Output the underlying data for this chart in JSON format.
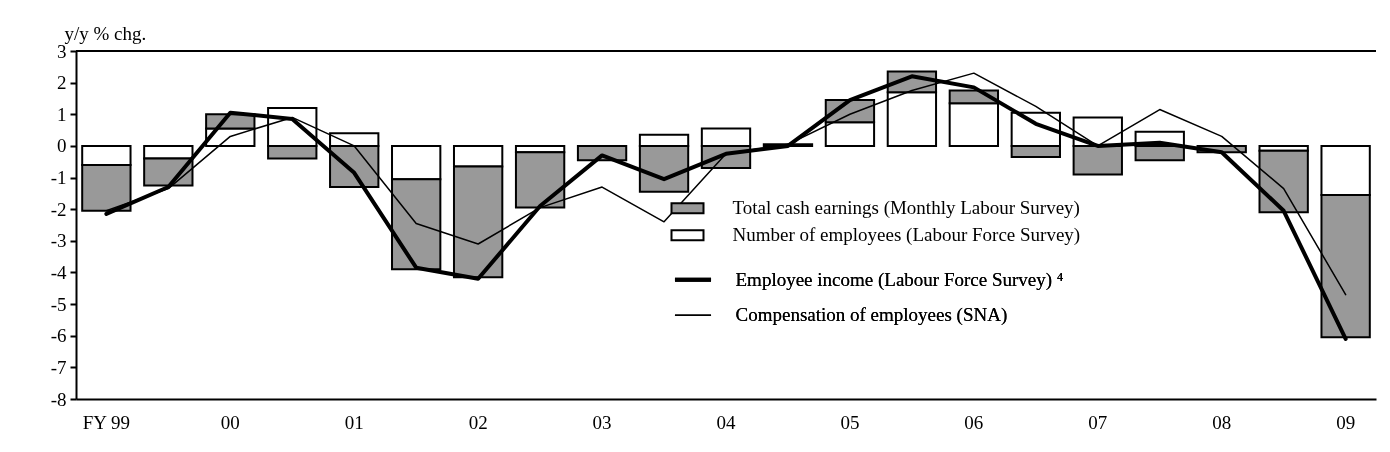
{
  "chart_data": {
    "type": "bar",
    "ylabel": "y/y % chg.",
    "stacked": true,
    "legend": "bottom right",
    "categories": [
      "FY 99",
      null,
      "00",
      null,
      "01",
      null,
      "02",
      null,
      "03",
      null,
      "04",
      null,
      "05",
      null,
      "06",
      null,
      "07",
      null,
      "08",
      null,
      "09"
    ],
    "ylim": [
      -8,
      3
    ],
    "yticks": [
      -8,
      -7,
      -6,
      -5,
      -4,
      -3,
      -2,
      -1,
      0,
      1,
      2,
      3
    ],
    "series": [
      {
        "name": "Number of employees (Labour Force Survey)",
        "type": "bar",
        "color": "#ffffff",
        "values": [
          -0.6,
          -0.4,
          0.55,
          1.2,
          0.4,
          -1.05,
          -0.65,
          -0.2,
          null,
          0.35,
          0.55,
          null,
          0.75,
          1.7,
          1.35,
          1.05,
          0.9,
          0.45,
          null,
          -0.15,
          -1.55
        ]
      },
      {
        "name": "Total cash earnings (Monthly Labour Survey)",
        "type": "bar",
        "color": "#999999",
        "values": [
          -1.45,
          -0.85,
          0.45,
          -0.4,
          -1.3,
          -2.85,
          -3.5,
          -1.75,
          -0.45,
          -1.45,
          -0.7,
          0.05,
          0.7,
          0.65,
          0.4,
          -0.35,
          -0.9,
          -0.45,
          -0.2,
          -1.95,
          -4.5
        ]
      },
      {
        "name": "Employee income (Labour Force Survey) ⁴",
        "type": "line",
        "color": "#000000",
        "values": [
          -2.15,
          -1.3,
          1.05,
          0.85,
          -0.85,
          -3.85,
          -4.2,
          -1.9,
          -0.3,
          -1.05,
          -0.25,
          0,
          1.45,
          2.2,
          1.85,
          0.7,
          0,
          0.1,
          -0.2,
          -2.05,
          -6.1
        ]
      },
      {
        "name": "Compensation of employees (SNA)",
        "type": "line",
        "color": "#000000",
        "values": [
          -2.05,
          -1.35,
          0.3,
          0.9,
          0,
          -2.45,
          -3.1,
          -1.95,
          -1.3,
          -2.4,
          -0.25,
          0.05,
          1,
          1.75,
          2.3,
          1.25,
          0,
          1.15,
          0.3,
          -1.35,
          -4.7
        ]
      }
    ]
  }
}
